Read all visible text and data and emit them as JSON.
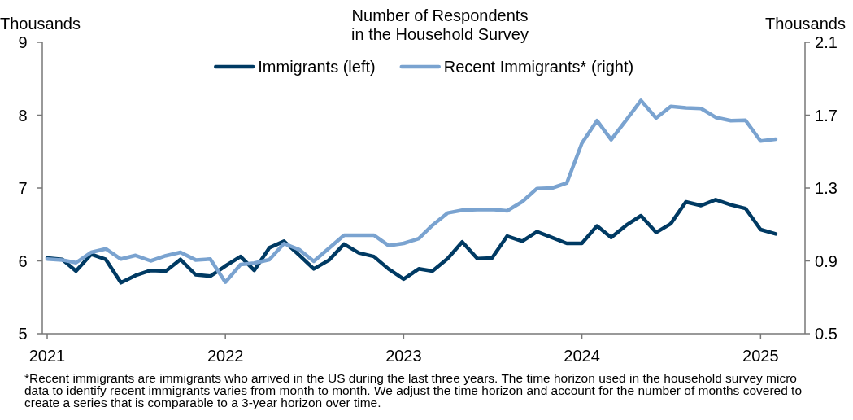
{
  "chart_data": {
    "type": "line",
    "title": "Number of Respondents\nin the Household Survey",
    "ylabel": "Thousands",
    "y2label": "Thousands",
    "x": [
      "2021-01",
      "2021-02",
      "2021-03",
      "2021-04",
      "2021-05",
      "2021-06",
      "2021-07",
      "2021-08",
      "2021-09",
      "2021-10",
      "2021-11",
      "2021-12",
      "2022-01",
      "2022-02",
      "2022-03",
      "2022-04",
      "2022-05",
      "2022-06",
      "2022-07",
      "2022-08",
      "2022-09",
      "2022-10",
      "2022-11",
      "2022-12",
      "2023-01",
      "2023-02",
      "2023-03",
      "2023-04",
      "2023-05",
      "2023-06",
      "2023-07",
      "2023-08",
      "2023-09",
      "2023-10",
      "2023-11",
      "2023-12",
      "2024-01",
      "2024-02",
      "2024-03",
      "2024-04",
      "2024-05",
      "2024-06",
      "2024-07",
      "2024-08",
      "2024-09",
      "2024-10",
      "2024-11",
      "2024-12",
      "2025-01",
      "2025-02"
    ],
    "series": [
      {
        "name": "Immigrants (left)",
        "color": "#003a63",
        "values": [
          6.04,
          6.02,
          5.86,
          6.09,
          6.02,
          5.7,
          5.8,
          5.87,
          5.86,
          6.02,
          5.81,
          5.79,
          5.93,
          6.06,
          5.87,
          6.18,
          6.27,
          6.08,
          5.89,
          6.01,
          6.23,
          6.11,
          6.06,
          5.89,
          5.75,
          5.89,
          5.86,
          6.03,
          6.26,
          6.03,
          6.04,
          6.34,
          6.27,
          6.4,
          6.32,
          6.24,
          6.24,
          6.48,
          6.32,
          6.49,
          6.62,
          6.39,
          6.51,
          6.81,
          6.76,
          6.84,
          6.77,
          6.72,
          6.43,
          6.37
        ]
      },
      {
        "name": "Recent Immigrants* (right)",
        "color": "#7aa3d0",
        "axis": "y2",
        "values": [
          0.91,
          0.905,
          0.89,
          0.947,
          0.966,
          0.91,
          0.93,
          0.9,
          0.928,
          0.947,
          0.905,
          0.91,
          0.783,
          0.88,
          0.888,
          0.907,
          0.995,
          0.962,
          0.898,
          0.969,
          1.041,
          1.041,
          1.041,
          0.984,
          0.996,
          1.022,
          1.096,
          1.163,
          1.178,
          1.181,
          1.183,
          1.175,
          1.225,
          1.297,
          1.3,
          1.327,
          1.546,
          1.67,
          1.565,
          1.674,
          1.781,
          1.684,
          1.748,
          1.74,
          1.737,
          1.688,
          1.67,
          1.672,
          1.558,
          1.568
        ]
      }
    ],
    "xlim": [
      "2020-12-22",
      "2025-04-02"
    ],
    "xticks": [
      {
        "value": "2021-01",
        "label": "2021"
      },
      {
        "value": "2022-01",
        "label": "2022"
      },
      {
        "value": "2023-01",
        "label": "2023"
      },
      {
        "value": "2024-01",
        "label": "2024"
      },
      {
        "value": "2025-01",
        "label": "2025"
      }
    ],
    "ylim": [
      5,
      9
    ],
    "yticks": [
      5,
      6,
      7,
      8,
      9
    ],
    "y2lim": [
      0.5,
      2.1
    ],
    "y2ticks": [
      0.5,
      0.9,
      1.3,
      1.7,
      2.1
    ],
    "grid": false,
    "legend": "top",
    "marker": "none",
    "line_style": "solid",
    "annotations": [
      "*Recent immigrants are immigrants who arrived in the US during the last three years. The time horizon used in the household survey micro data to identify recent immigrants varies from month to month. We adjust the time horizon and account for the number of months covered to create a series that is comparable to a 3-year horizon over time."
    ]
  }
}
